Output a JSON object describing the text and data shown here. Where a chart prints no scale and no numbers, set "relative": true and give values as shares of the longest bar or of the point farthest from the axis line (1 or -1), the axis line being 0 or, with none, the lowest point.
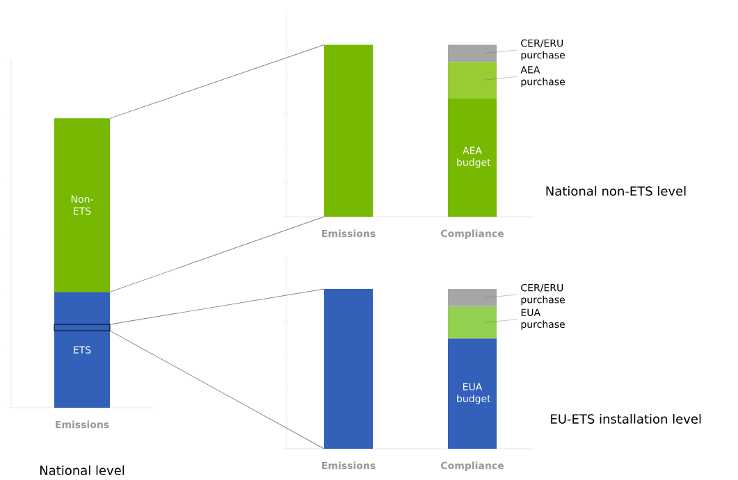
{
  "chart_data": [
    {
      "type": "bar",
      "stacked": true,
      "relative": true,
      "annotations": [
        "National level"
      ],
      "categories": [
        "Emissions"
      ],
      "series": [
        {
          "name": "ETS",
          "color": "#3360b8",
          "values": [
            0.4
          ]
        },
        {
          "name": "Non-ETS",
          "color": "#77b800",
          "values": [
            0.6
          ]
        }
      ]
    },
    {
      "type": "bar",
      "stacked": true,
      "relative": true,
      "annotations": [
        "National non-ETS level"
      ],
      "categories": [
        "Emissions",
        "Compliance"
      ],
      "series": [
        {
          "color": "#77b800",
          "values": [
            1,
            null
          ]
        },
        {
          "name": "AEA budget",
          "color": "#77b800",
          "values": [
            null,
            0.69
          ]
        },
        {
          "name": "AEA purchase",
          "color": "#99cc33",
          "values": [
            null,
            0.21
          ]
        },
        {
          "name": "CER/ERU purchase",
          "color": "#a6a6a6",
          "values": [
            null,
            0.1
          ]
        }
      ]
    },
    {
      "type": "bar",
      "stacked": true,
      "relative": true,
      "annotations": [
        "EU-ETS installation level"
      ],
      "categories": [
        "Emissions",
        "Compliance"
      ],
      "series": [
        {
          "color": "#3360b8",
          "values": [
            1,
            null
          ]
        },
        {
          "name": "EUA budget",
          "color": "#3360b8",
          "values": [
            null,
            0.69
          ]
        },
        {
          "name": "EUA purchase",
          "color": "#92d050",
          "values": [
            null,
            0.2
          ]
        },
        {
          "name": "CER/ERU purchase",
          "color": "#a6a6a6",
          "values": [
            null,
            0.11
          ]
        }
      ]
    }
  ]
}
